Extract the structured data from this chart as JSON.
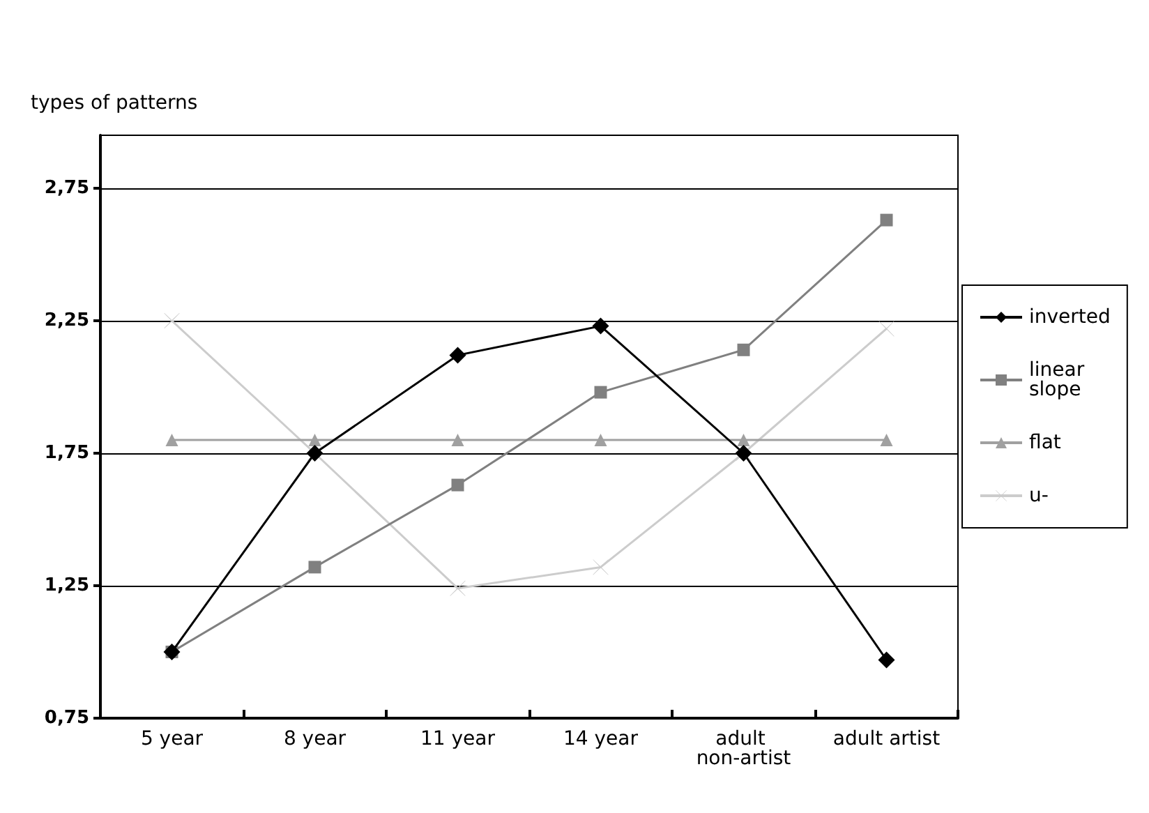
{
  "chart_data": {
    "type": "line",
    "ylabel": "types of patterns",
    "categories": [
      "5 year",
      "8 year",
      "11 year",
      "14 year",
      "adult non-artist",
      "adult artist"
    ],
    "series": [
      {
        "name": "inverted",
        "color": "#000000",
        "marker": "diamond",
        "values": [
          1.0,
          1.75,
          2.12,
          2.23,
          1.75,
          0.97
        ]
      },
      {
        "name": "linear slope",
        "color": "#808080",
        "marker": "square",
        "values": [
          1.0,
          1.32,
          1.63,
          1.98,
          2.14,
          2.63
        ]
      },
      {
        "name": "flat",
        "color": "#a0a0a0",
        "marker": "triangle",
        "values": [
          1.8,
          1.8,
          1.8,
          1.8,
          1.8,
          1.8
        ]
      },
      {
        "name": "u-",
        "color": "#cccccc",
        "marker": "cross",
        "values": [
          2.25,
          1.75,
          1.24,
          1.32,
          1.75,
          2.22
        ]
      }
    ],
    "ylim": [
      0.75,
      2.95
    ],
    "yticks": [
      {
        "value": 0.75,
        "label": "0,75"
      },
      {
        "value": 1.25,
        "label": "1,25"
      },
      {
        "value": 1.75,
        "label": "1,75"
      },
      {
        "value": 2.25,
        "label": "2,25"
      },
      {
        "value": 2.75,
        "label": "2,75"
      }
    ],
    "grid": "y",
    "legend": "right",
    "line_style": "solid"
  }
}
